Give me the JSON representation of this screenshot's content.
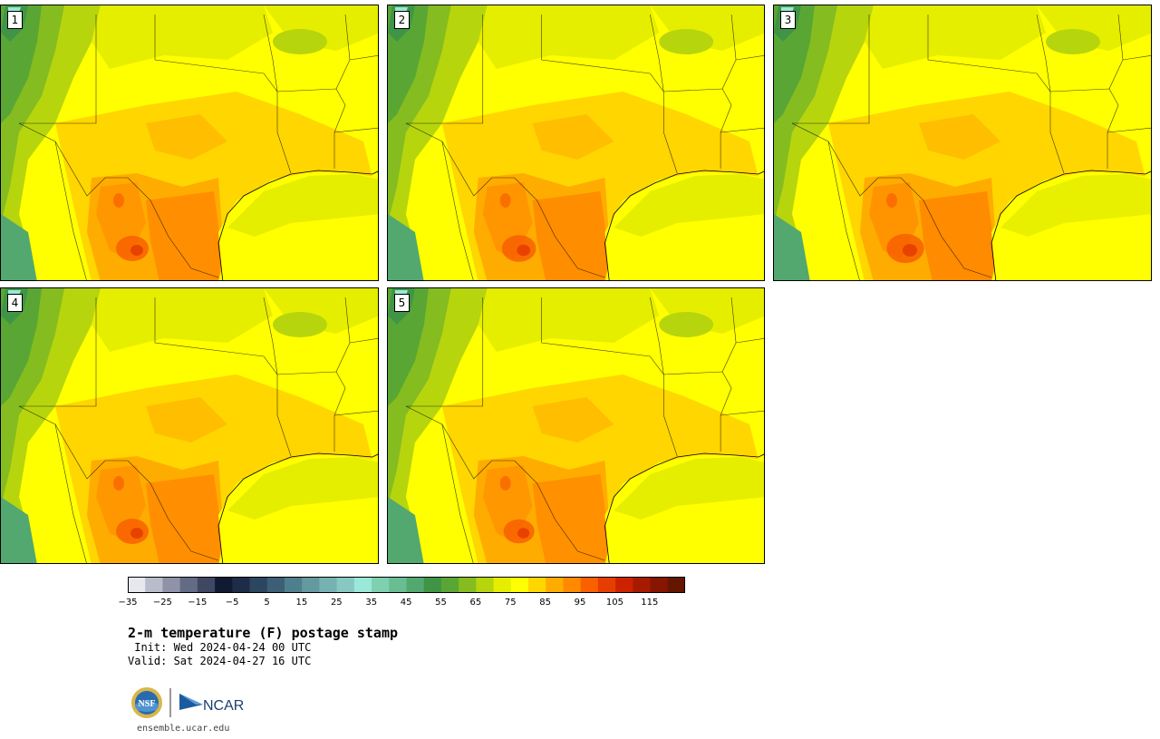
{
  "panels": [
    {
      "label": "1"
    },
    {
      "label": "2"
    },
    {
      "label": "3"
    },
    {
      "label": "4"
    },
    {
      "label": "5"
    }
  ],
  "colorbar": {
    "ticks": [
      "−35",
      "−25",
      "−15",
      "−5",
      "5",
      "15",
      "25",
      "35",
      "45",
      "55",
      "65",
      "75",
      "85",
      "95",
      "105",
      "115"
    ],
    "colors": [
      "#e6e8ee",
      "#b8bccb",
      "#8e93a8",
      "#636b85",
      "#3f4763",
      "#101a32",
      "#1e2c48",
      "#2c4660",
      "#3c5f75",
      "#4f7f8c",
      "#64999f",
      "#76b2b1",
      "#87c9c2",
      "#9ae8d8",
      "#7fd0b0",
      "#68bd92",
      "#53a870",
      "#3f9545",
      "#5aa635",
      "#85bc20",
      "#b7d50d",
      "#e6ee00",
      "#ffff00",
      "#ffd600",
      "#ffac00",
      "#ff8a00",
      "#f86000",
      "#e63e00",
      "#cc2200",
      "#a81a00",
      "#861600",
      "#651600"
    ],
    "range": [
      -35,
      120
    ]
  },
  "title": {
    "main": "2-m temperature (F) postage stamp",
    "init": " Init: Wed 2024-04-24 00 UTC",
    "valid": "Valid: Sat 2024-04-27 16 UTC"
  },
  "logos": {
    "nsf": "NSF",
    "ncar": "NCAR"
  },
  "footer": {
    "site": "ensemble.ucar.edu"
  }
}
